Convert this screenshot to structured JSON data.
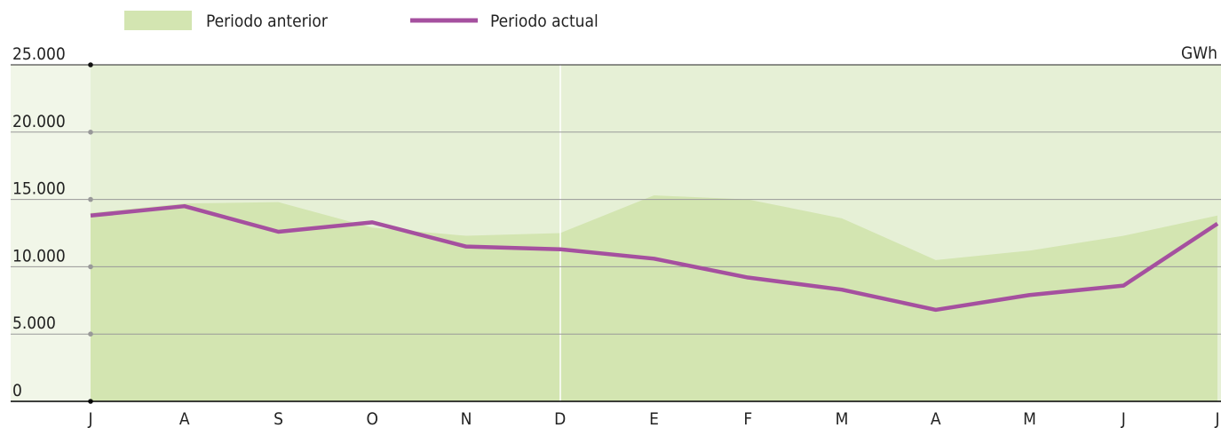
{
  "chart_data": {
    "type": "line",
    "unit_label": "GWh",
    "categories": [
      "J",
      "A",
      "S",
      "O",
      "N",
      "D",
      "E",
      "F",
      "M",
      "A",
      "M",
      "J",
      "J"
    ],
    "series": [
      {
        "name": "Periodo anterior",
        "color": "#d3e5b1",
        "fill": true,
        "values": [
          14000,
          14700,
          14800,
          12900,
          12300,
          12500,
          15300,
          15000,
          13600,
          10500,
          11200,
          12300,
          13800
        ]
      },
      {
        "name": "Periodo actual",
        "color": "#a5509f",
        "values": [
          13800,
          14500,
          12600,
          13300,
          11500,
          11300,
          10600,
          9200,
          8300,
          6800,
          7900,
          8600,
          13200
        ]
      }
    ],
    "ylim": [
      0,
      25000
    ],
    "yticks": [
      0,
      {
        "value": 5000,
        "label": "5.000"
      },
      {
        "value": 10000,
        "label": "10.000"
      },
      {
        "value": 15000,
        "label": "15.000"
      },
      {
        "value": 20000,
        "label": "20.000"
      },
      {
        "value": 25000,
        "label": "25.000"
      }
    ],
    "grid": true
  }
}
